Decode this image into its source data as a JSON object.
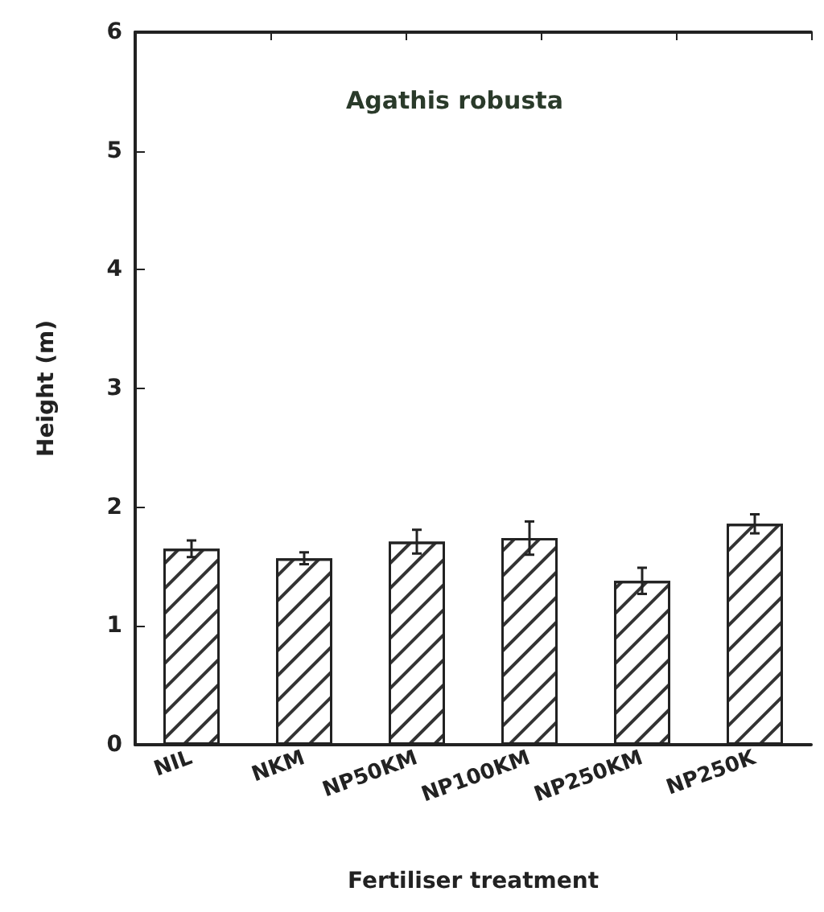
{
  "chart_data": {
    "type": "bar",
    "title": "Agathis robusta",
    "xlabel": "Fertiliser treatment",
    "ylabel": "Height (m)",
    "categories": [
      "NIL",
      "NKM",
      "NP50KM",
      "NP100KM",
      "NP250KM",
      "NP250K"
    ],
    "values": [
      1.65,
      1.57,
      1.71,
      1.74,
      1.38,
      1.86
    ],
    "errors": [
      0.07,
      0.05,
      0.1,
      0.14,
      0.11,
      0.08
    ],
    "color": "#ffffff",
    "ylim": [
      0,
      6
    ],
    "yticks": [
      0,
      1,
      2,
      3,
      4,
      5,
      6
    ],
    "grid": false
  }
}
